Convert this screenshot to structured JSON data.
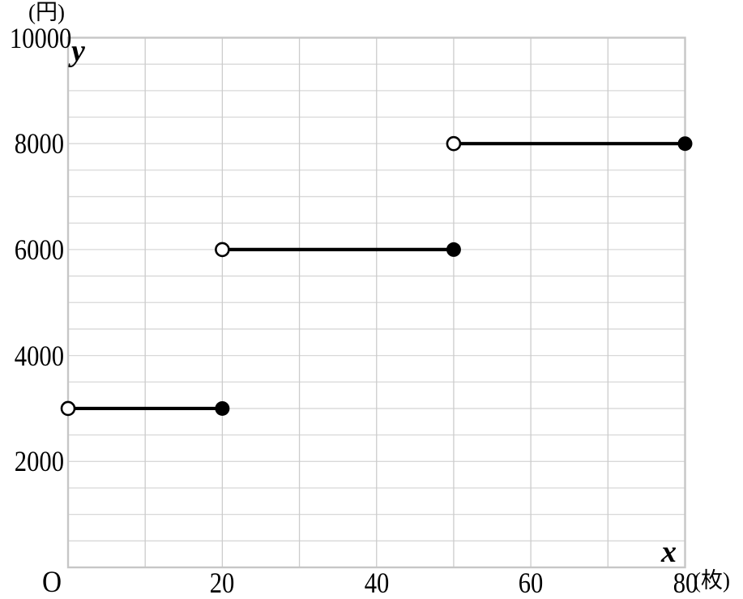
{
  "chart_data": {
    "type": "step",
    "xlabel": "x",
    "ylabel": "y",
    "x_unit": "(枚)",
    "y_unit": "(円)",
    "origin_label": "O",
    "xlim": [
      0,
      80
    ],
    "ylim": [
      0,
      10000
    ],
    "x_ticks": [
      20,
      40,
      60,
      80
    ],
    "y_ticks": [
      2000,
      4000,
      6000,
      8000,
      10000
    ],
    "x_minor_grid_step": 10,
    "y_minor_grid_step": 500,
    "grid": true,
    "legend": "none",
    "segments": [
      {
        "x_start": 0,
        "x_end": 20,
        "y": 3000,
        "start": "open",
        "end": "closed"
      },
      {
        "x_start": 20,
        "x_end": 50,
        "y": 6000,
        "start": "open",
        "end": "closed"
      },
      {
        "x_start": 50,
        "x_end": 80,
        "y": 8000,
        "start": "open",
        "end": "closed"
      }
    ],
    "colors": {
      "line": "#000000",
      "h_grid": "#d8d8d8",
      "v_grid": "#cccccc",
      "border": "#c6c6c6",
      "background": "#ffffff",
      "text": "#000000"
    }
  }
}
